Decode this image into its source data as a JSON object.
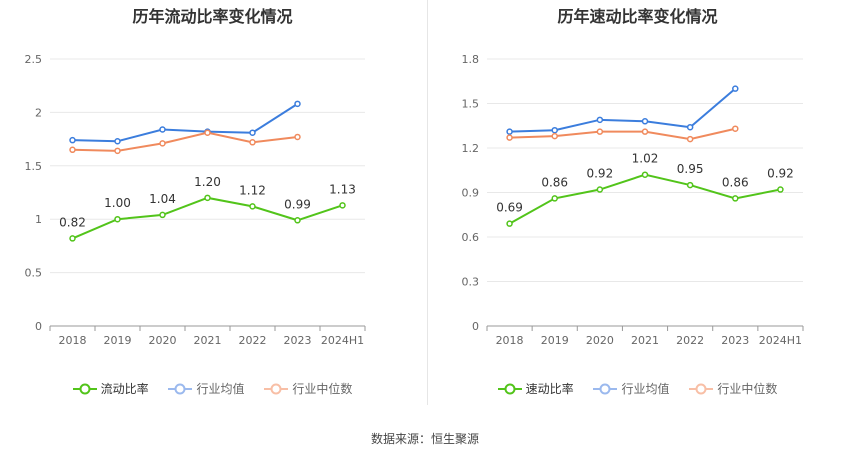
{
  "source": "数据来源：恒生聚源",
  "colors": {
    "main": "#52c41a",
    "avg": "#3b7ddd",
    "median": "#f08a5d",
    "avg_legend": "#9bb9ee",
    "median_legend": "#f8bfa6"
  },
  "chart_data": [
    {
      "type": "line",
      "title": "历年流动比率变化情况",
      "xlabel": "",
      "ylabel": "",
      "categories": [
        "2018",
        "2019",
        "2020",
        "2021",
        "2022",
        "2023",
        "2024H1"
      ],
      "ylim": [
        0,
        2.5
      ],
      "yticks": [
        "0",
        "0.5",
        "1",
        "1.5",
        "2",
        "2.5"
      ],
      "ytick_values": [
        0,
        0.5,
        1,
        1.5,
        2,
        2.5
      ],
      "grid": true,
      "legend_position": "bottom",
      "series": [
        {
          "name": "流动比率",
          "values": [
            0.82,
            1.0,
            1.04,
            1.2,
            1.12,
            0.99,
            1.13
          ],
          "labels": [
            "0.82",
            "1.00",
            "1.04",
            "1.20",
            "1.12",
            "0.99",
            "1.13"
          ]
        },
        {
          "name": "行业均值",
          "values": [
            1.74,
            1.73,
            1.84,
            1.82,
            1.81,
            2.08,
            null
          ]
        },
        {
          "name": "行业中位数",
          "values": [
            1.65,
            1.64,
            1.71,
            1.81,
            1.72,
            1.77,
            null
          ]
        }
      ]
    },
    {
      "type": "line",
      "title": "历年速动比率变化情况",
      "xlabel": "",
      "ylabel": "",
      "categories": [
        "2018",
        "2019",
        "2020",
        "2021",
        "2022",
        "2023",
        "2024H1"
      ],
      "ylim": [
        0,
        1.8
      ],
      "yticks": [
        "0",
        "0.3",
        "0.6",
        "0.9",
        "1.2",
        "1.5",
        "1.8"
      ],
      "ytick_values": [
        0,
        0.3,
        0.6,
        0.9,
        1.2,
        1.5,
        1.8
      ],
      "grid": true,
      "legend_position": "bottom",
      "series": [
        {
          "name": "速动比率",
          "values": [
            0.69,
            0.86,
            0.92,
            1.02,
            0.95,
            0.86,
            0.92
          ],
          "labels": [
            "0.69",
            "0.86",
            "0.92",
            "1.02",
            "0.95",
            "0.86",
            "0.92"
          ]
        },
        {
          "name": "行业均值",
          "values": [
            1.31,
            1.32,
            1.39,
            1.38,
            1.34,
            1.6,
            null
          ]
        },
        {
          "name": "行业中位数",
          "values": [
            1.27,
            1.28,
            1.31,
            1.31,
            1.26,
            1.33,
            null
          ]
        }
      ]
    }
  ]
}
